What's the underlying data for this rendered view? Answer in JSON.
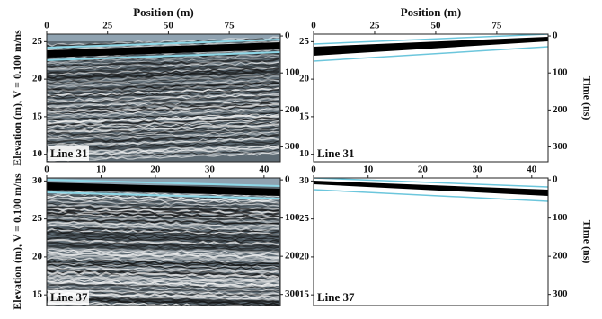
{
  "chart_data": [
    {
      "type": "radargram",
      "x_label": "Position (m)",
      "y_label": "Elevation (m), V = 0.100 m/ns",
      "panel_label": "Line 31",
      "xlim": [
        0,
        96
      ],
      "xticks": [
        0,
        25,
        50,
        75
      ],
      "ylim": [
        9,
        26
      ],
      "yticks": [
        25,
        20,
        15,
        10
      ],
      "y2lim": [
        -5,
        340
      ],
      "y2ticks": [
        0,
        100,
        200,
        300
      ]
    },
    {
      "type": "radargram",
      "x_label": "Position (m)",
      "y2_label": "Time (ns)",
      "panel_label": "Line 31",
      "xlim": [
        0,
        96
      ],
      "xticks": [
        0,
        25,
        50,
        75
      ],
      "ylim": [
        9,
        26
      ],
      "yticks": [
        25,
        20,
        15,
        10
      ],
      "y2lim": [
        -5,
        340
      ],
      "y2ticks": [
        0,
        100,
        200,
        300
      ]
    },
    {
      "type": "radargram",
      "y_label": "Elevation (m), V = 0.100 m/ns",
      "panel_label": "Line 37",
      "xlim": [
        0,
        43
      ],
      "xticks": [
        0,
        10,
        20,
        30,
        40
      ],
      "ylim": [
        13.6,
        30.4
      ],
      "yticks": [
        30,
        25,
        20,
        15
      ],
      "y2lim": [
        -5,
        329
      ],
      "y2ticks": [
        0,
        100,
        200,
        300
      ]
    },
    {
      "type": "radargram",
      "y2_label": "Time (ns)",
      "panel_label": "Line 37",
      "xlim": [
        0,
        43
      ],
      "xticks": [
        0,
        10,
        20,
        30,
        40
      ],
      "ylim": [
        13.6,
        30.4
      ],
      "yticks": [
        30,
        25,
        20,
        15
      ],
      "y2lim": [
        -5,
        329
      ],
      "y2ticks": [
        0,
        100,
        200,
        300
      ]
    }
  ]
}
